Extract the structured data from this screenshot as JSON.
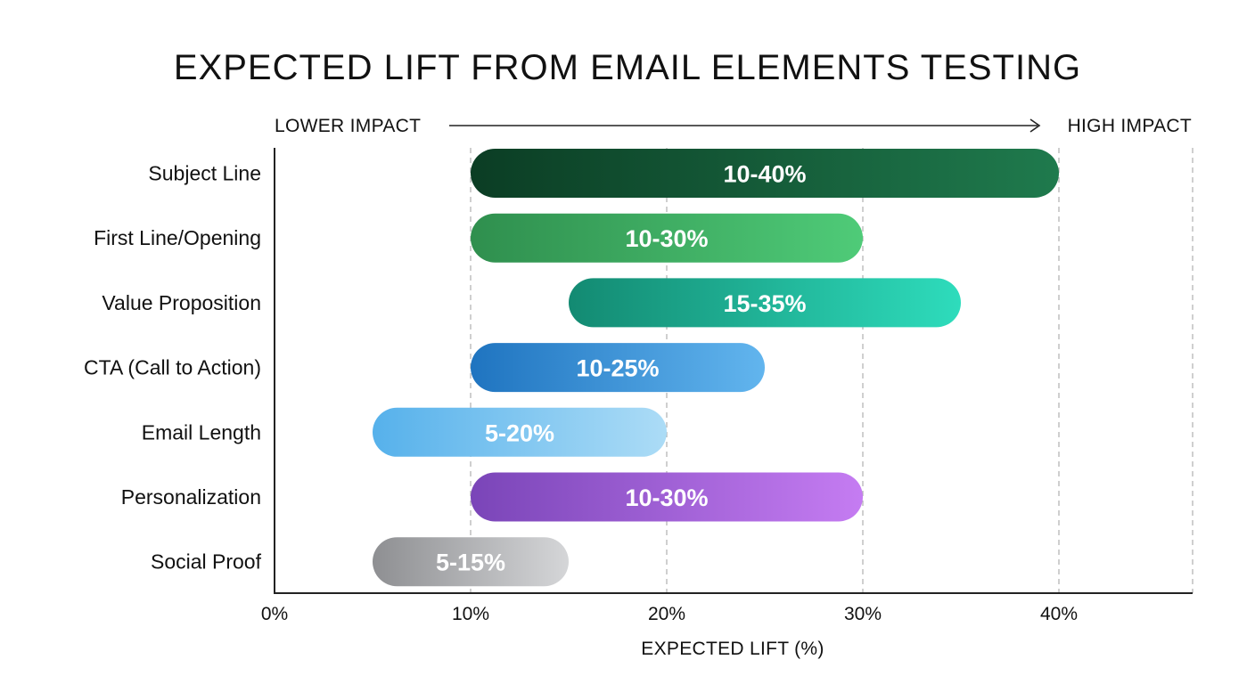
{
  "chart_data": {
    "type": "bar",
    "orientation": "horizontal-range",
    "title": "EXPECTED LIFT FROM EMAIL ELEMENTS TESTING",
    "xlabel": "EXPECTED LIFT (%)",
    "ylabel": "",
    "xlim": [
      0,
      46
    ],
    "x_ticks": [
      {
        "value": 0,
        "label": "0%"
      },
      {
        "value": 10,
        "label": "10%"
      },
      {
        "value": 20,
        "label": "20%"
      },
      {
        "value": 30,
        "label": "30%"
      },
      {
        "value": 40,
        "label": "40%"
      }
    ],
    "grid": true,
    "impact_scale": {
      "low_label": "LOWER IMPACT",
      "high_label": "HIGH IMPACT"
    },
    "categories": [
      "Subject Line",
      "First Line/Opening",
      "Value Proposition",
      "CTA (Call to Action)",
      "Email Length",
      "Personalization",
      "Social Proof"
    ],
    "ranges": [
      {
        "low": 10,
        "high": 40,
        "label": "10-40%",
        "colors": [
          "#0b3d24",
          "#1f7a4d"
        ]
      },
      {
        "low": 10,
        "high": 30,
        "label": "10-30%",
        "colors": [
          "#2f8f4e",
          "#4fcb78"
        ]
      },
      {
        "low": 15,
        "high": 35,
        "label": "15-35%",
        "colors": [
          "#138a72",
          "#2edcbc"
        ]
      },
      {
        "low": 10,
        "high": 25,
        "label": "10-25%",
        "colors": [
          "#1f74c0",
          "#62b5ee"
        ]
      },
      {
        "low": 5,
        "high": 20,
        "label": "5-20%",
        "colors": [
          "#56b1eb",
          "#acdcf6"
        ]
      },
      {
        "low": 10,
        "high": 30,
        "label": "10-30%",
        "colors": [
          "#7a45b8",
          "#c57cf2"
        ]
      },
      {
        "low": 5,
        "high": 15,
        "label": "5-15%",
        "colors": [
          "#8e8f92",
          "#d5d6d8"
        ]
      }
    ]
  }
}
